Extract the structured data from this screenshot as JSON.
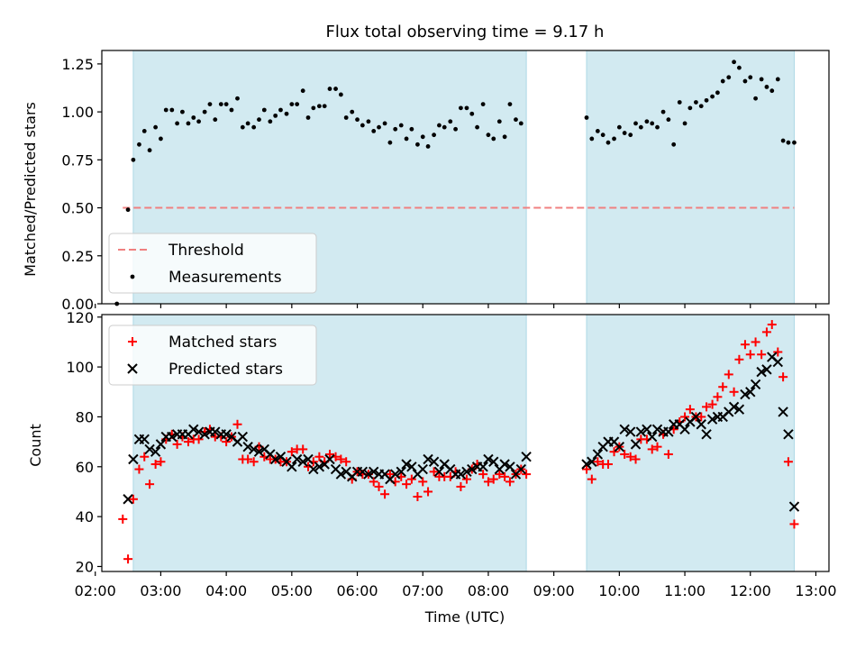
{
  "chart_data": {
    "title": "Flux total observing time = 9.17 h",
    "xlabel": "Time (UTC)",
    "x_unit": "hours UTC",
    "xlim": [
      2.1,
      13.2
    ],
    "x_ticks": [
      {
        "value": 2,
        "label": "02:00"
      },
      {
        "value": 3,
        "label": "03:00"
      },
      {
        "value": 4,
        "label": "04:00"
      },
      {
        "value": 5,
        "label": "05:00"
      },
      {
        "value": 6,
        "label": "06:00"
      },
      {
        "value": 7,
        "label": "07:00"
      },
      {
        "value": 8,
        "label": "08:00"
      },
      {
        "value": 9,
        "label": "09:00"
      },
      {
        "value": 10,
        "label": "10:00"
      },
      {
        "value": 11,
        "label": "11:00"
      },
      {
        "value": 12,
        "label": "12:00"
      },
      {
        "value": 13,
        "label": "13:00"
      }
    ],
    "shaded_spans": [
      [
        2.58,
        8.58
      ],
      [
        9.5,
        12.67
      ]
    ],
    "shade_color": "#add8e6",
    "panels": [
      {
        "id": "ratio",
        "type": "scatter",
        "ylabel": "Matched/Predicted stars",
        "ylim": [
          0,
          1.32
        ],
        "y_ticks": [
          {
            "value": 0,
            "label": "0.00"
          },
          {
            "value": 0.25,
            "label": "0.25"
          },
          {
            "value": 0.5,
            "label": "0.50"
          },
          {
            "value": 0.75,
            "label": "0.75"
          },
          {
            "value": 1.0,
            "label": "1.00"
          },
          {
            "value": 1.25,
            "label": "1.25"
          }
        ],
        "legend_position": "lower-left",
        "threshold": {
          "name": "Threshold",
          "value": 0.5,
          "x_range": [
            2.42,
            12.67
          ],
          "color": "#f08080"
        },
        "series": [
          {
            "name": "Measurements",
            "marker": "dot",
            "color": "#000000",
            "x": [
              2.33,
              2.5,
              2.58,
              2.67,
              2.75,
              2.83,
              2.92,
              3.0,
              3.08,
              3.17,
              3.25,
              3.33,
              3.42,
              3.5,
              3.58,
              3.67,
              3.75,
              3.83,
              3.92,
              4.0,
              4.08,
              4.17,
              4.25,
              4.33,
              4.42,
              4.5,
              4.58,
              4.67,
              4.75,
              4.83,
              4.92,
              5.0,
              5.08,
              5.17,
              5.25,
              5.33,
              5.42,
              5.5,
              5.58,
              5.67,
              5.75,
              5.83,
              5.92,
              6.0,
              6.08,
              6.17,
              6.25,
              6.33,
              6.42,
              6.5,
              6.58,
              6.67,
              6.75,
              6.83,
              6.92,
              7.0,
              7.08,
              7.17,
              7.25,
              7.33,
              7.42,
              7.5,
              7.58,
              7.67,
              7.75,
              7.83,
              7.92,
              8.0,
              8.08,
              8.17,
              8.25,
              8.33,
              8.42,
              8.5,
              9.5,
              9.58,
              9.67,
              9.75,
              9.83,
              9.92,
              10.0,
              10.08,
              10.17,
              10.25,
              10.33,
              10.42,
              10.5,
              10.58,
              10.67,
              10.75,
              10.83,
              10.92,
              11.0,
              11.08,
              11.17,
              11.25,
              11.33,
              11.42,
              11.5,
              11.58,
              11.67,
              11.75,
              11.83,
              11.92,
              12.0,
              12.08,
              12.17,
              12.25,
              12.33,
              12.42,
              12.5,
              12.58,
              12.67
            ],
            "y": [
              0.0,
              0.49,
              0.75,
              0.83,
              0.9,
              0.8,
              0.92,
              0.86,
              1.01,
              1.01,
              0.94,
              1.0,
              0.94,
              0.97,
              0.95,
              1.0,
              1.04,
              0.96,
              1.04,
              1.04,
              1.01,
              1.07,
              0.92,
              0.94,
              0.92,
              0.96,
              1.01,
              0.95,
              0.98,
              1.01,
              0.99,
              1.04,
              1.04,
              1.11,
              0.97,
              1.02,
              1.03,
              1.03,
              1.12,
              1.12,
              1.09,
              0.97,
              1.0,
              0.96,
              0.93,
              0.95,
              0.9,
              0.92,
              0.94,
              0.84,
              0.91,
              0.93,
              0.86,
              0.91,
              0.83,
              0.87,
              0.82,
              0.88,
              0.93,
              0.92,
              0.95,
              0.91,
              1.02,
              1.02,
              0.99,
              0.92,
              1.04,
              0.88,
              0.86,
              0.95,
              0.87,
              1.04,
              0.96,
              0.94,
              0.97,
              0.86,
              0.9,
              0.88,
              0.84,
              0.86,
              0.92,
              0.89,
              0.88,
              0.94,
              0.92,
              0.95,
              0.94,
              0.92,
              1.0,
              0.96,
              0.83,
              1.05,
              0.94,
              1.02,
              1.05,
              1.03,
              1.06,
              1.08,
              1.1,
              1.16,
              1.18,
              1.26,
              1.23,
              1.16,
              1.18,
              1.07,
              1.17,
              1.13,
              1.11,
              1.17,
              0.85,
              0.84,
              0.84
            ]
          }
        ]
      },
      {
        "id": "counts",
        "type": "scatter",
        "ylabel": "Count",
        "ylim": [
          18,
          121
        ],
        "y_ticks": [
          {
            "value": 20,
            "label": "20"
          },
          {
            "value": 40,
            "label": "40"
          },
          {
            "value": 60,
            "label": "60"
          },
          {
            "value": 80,
            "label": "80"
          },
          {
            "value": 100,
            "label": "100"
          },
          {
            "value": 120,
            "label": "120"
          }
        ],
        "legend_position": "upper-left",
        "series": [
          {
            "name": "Matched stars",
            "marker": "plus",
            "color": "#ff0000",
            "x": [
              2.42,
              2.5,
              2.58,
              2.67,
              2.75,
              2.83,
              2.92,
              3.0,
              3.08,
              3.17,
              3.25,
              3.33,
              3.42,
              3.5,
              3.58,
              3.67,
              3.75,
              3.83,
              3.92,
              4.0,
              4.08,
              4.17,
              4.25,
              4.33,
              4.42,
              4.5,
              4.58,
              4.67,
              4.75,
              4.83,
              4.92,
              5.0,
              5.08,
              5.17,
              5.25,
              5.33,
              5.42,
              5.5,
              5.58,
              5.67,
              5.75,
              5.83,
              5.92,
              6.0,
              6.08,
              6.17,
              6.25,
              6.33,
              6.42,
              6.5,
              6.58,
              6.67,
              6.75,
              6.83,
              6.92,
              7.0,
              7.08,
              7.17,
              7.25,
              7.33,
              7.42,
              7.5,
              7.58,
              7.67,
              7.75,
              7.83,
              7.92,
              8.0,
              8.08,
              8.17,
              8.25,
              8.33,
              8.42,
              8.5,
              8.58,
              9.5,
              9.58,
              9.67,
              9.75,
              9.83,
              9.92,
              10.0,
              10.08,
              10.17,
              10.25,
              10.33,
              10.42,
              10.5,
              10.58,
              10.67,
              10.75,
              10.83,
              10.92,
              11.0,
              11.08,
              11.17,
              11.25,
              11.33,
              11.42,
              11.5,
              11.58,
              11.67,
              11.75,
              11.83,
              11.92,
              12.0,
              12.08,
              12.17,
              12.25,
              12.33,
              12.42,
              12.5,
              12.58,
              12.67
            ],
            "y": [
              39,
              23,
              47,
              59,
              64,
              53,
              61,
              62,
              71,
              73,
              69,
              72,
              70,
              71,
              71,
              74,
              75,
              72,
              72,
              70,
              72,
              77,
              63,
              63,
              62,
              68,
              64,
              63,
              63,
              62,
              62,
              66,
              67,
              67,
              60,
              62,
              64,
              62,
              65,
              64,
              63,
              62,
              55,
              58,
              57,
              57,
              54,
              52,
              49,
              57,
              54,
              56,
              53,
              55,
              48,
              54,
              50,
              58,
              56,
              56,
              56,
              58,
              52,
              55,
              59,
              61,
              57,
              54,
              55,
              57,
              56,
              54,
              57,
              59,
              57,
              59,
              55,
              62,
              61,
              61,
              66,
              68,
              65,
              64,
              63,
              71,
              71,
              67,
              68,
              73,
              65,
              75,
              78,
              80,
              83,
              80,
              80,
              84,
              85,
              88,
              92,
              97,
              90,
              103,
              109,
              105,
              110,
              105,
              114,
              117,
              106,
              96,
              62,
              37
            ],
            "legend_label": "Matched stars"
          },
          {
            "name": "Predicted stars",
            "marker": "x",
            "color": "#000000",
            "x": [
              2.5,
              2.58,
              2.67,
              2.75,
              2.83,
              2.92,
              3.0,
              3.08,
              3.17,
              3.25,
              3.33,
              3.42,
              3.5,
              3.58,
              3.67,
              3.75,
              3.83,
              3.92,
              4.0,
              4.08,
              4.17,
              4.25,
              4.33,
              4.42,
              4.5,
              4.58,
              4.67,
              4.75,
              4.83,
              4.92,
              5.0,
              5.08,
              5.17,
              5.25,
              5.33,
              5.42,
              5.5,
              5.58,
              5.67,
              5.75,
              5.83,
              5.92,
              6.0,
              6.08,
              6.17,
              6.25,
              6.33,
              6.42,
              6.5,
              6.58,
              6.67,
              6.75,
              6.83,
              6.92,
              7.0,
              7.08,
              7.17,
              7.25,
              7.33,
              7.42,
              7.5,
              7.58,
              7.67,
              7.75,
              7.83,
              7.92,
              8.0,
              8.08,
              8.17,
              8.25,
              8.33,
              8.42,
              8.5,
              8.58,
              9.5,
              9.58,
              9.67,
              9.75,
              9.83,
              9.92,
              10.0,
              10.08,
              10.17,
              10.25,
              10.33,
              10.42,
              10.5,
              10.58,
              10.67,
              10.75,
              10.83,
              10.92,
              11.0,
              11.08,
              11.17,
              11.25,
              11.33,
              11.42,
              11.5,
              11.58,
              11.67,
              11.75,
              11.83,
              11.92,
              12.0,
              12.08,
              12.17,
              12.25,
              12.33,
              12.42,
              12.5,
              12.58,
              12.67
            ],
            "y": [
              47,
              63,
              71,
              71,
              67,
              66,
              69,
              72,
              72,
              73,
              73,
              73,
              75,
              74,
              73,
              74,
              74,
              73,
              73,
              72,
              70,
              72,
              68,
              67,
              66,
              67,
              65,
              63,
              64,
              62,
              60,
              63,
              62,
              63,
              59,
              60,
              61,
              63,
              59,
              57,
              58,
              56,
              58,
              58,
              57,
              58,
              57,
              57,
              55,
              57,
              58,
              61,
              60,
              57,
              59,
              63,
              62,
              58,
              61,
              59,
              57,
              57,
              58,
              59,
              60,
              60,
              63,
              62,
              59,
              61,
              60,
              57,
              59,
              64,
              61,
              62,
              65,
              68,
              70,
              70,
              68,
              75,
              74,
              69,
              74,
              75,
              72,
              75,
              74,
              74,
              77,
              77,
              75,
              78,
              80,
              77,
              73,
              79,
              80,
              80,
              82,
              84,
              83,
              89,
              90,
              93,
              98,
              99,
              104,
              102,
              82,
              73,
              44
            ],
            "legend_label": "Predicted stars"
          }
        ]
      }
    ]
  }
}
